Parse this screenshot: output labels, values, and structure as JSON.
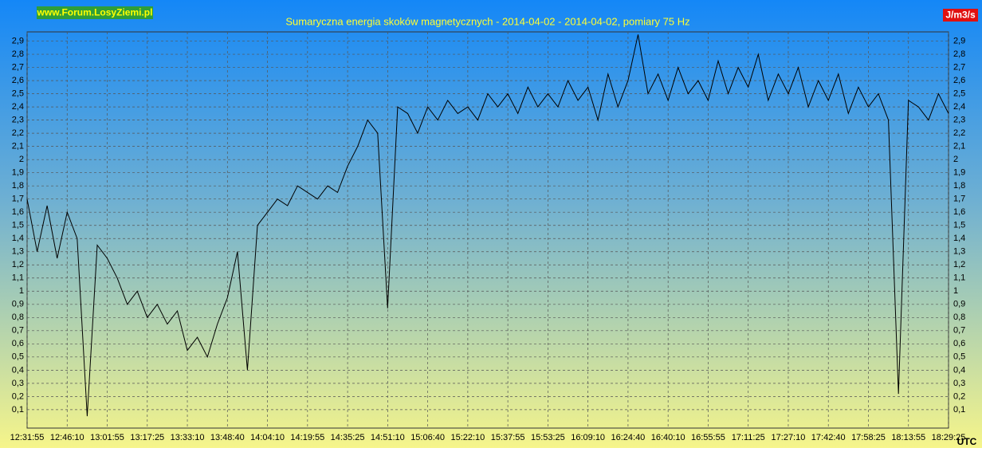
{
  "chart_data": {
    "type": "line",
    "title": "Sumaryczna energia skoków magnetycznych - 2014-04-02 - 2014-04-02, pomiary 75 Hz",
    "watermark": "www.Forum.LosyZiemi.pl",
    "y_unit": "J/m3/s",
    "x_unit": "UTC",
    "grid": true,
    "xlim": [
      0,
      23
    ],
    "xticks": [
      {
        "value": 0,
        "label": "12:31:55"
      },
      {
        "value": 1,
        "label": "12:46:10"
      },
      {
        "value": 2,
        "label": "13:01:55"
      },
      {
        "value": 3,
        "label": "13:17:25"
      },
      {
        "value": 4,
        "label": "13:33:10"
      },
      {
        "value": 5,
        "label": "13:48:40"
      },
      {
        "value": 6,
        "label": "14:04:10"
      },
      {
        "value": 7,
        "label": "14:19:55"
      },
      {
        "value": 8,
        "label": "14:35:25"
      },
      {
        "value": 9,
        "label": "14:51:10"
      },
      {
        "value": 10,
        "label": "15:06:40"
      },
      {
        "value": 11,
        "label": "15:22:10"
      },
      {
        "value": 12,
        "label": "15:37:55"
      },
      {
        "value": 13,
        "label": "15:53:25"
      },
      {
        "value": 14,
        "label": "16:09:10"
      },
      {
        "value": 15,
        "label": "16:24:40"
      },
      {
        "value": 16,
        "label": "16:40:10"
      },
      {
        "value": 17,
        "label": "16:55:55"
      },
      {
        "value": 18,
        "label": "17:11:25"
      },
      {
        "value": 19,
        "label": "17:27:10"
      },
      {
        "value": 20,
        "label": "17:42:40"
      },
      {
        "value": 21,
        "label": "17:58:25"
      },
      {
        "value": 22,
        "label": "18:13:55"
      },
      {
        "value": 23,
        "label": "18:29:25"
      }
    ],
    "ylim": [
      -0.04,
      2.97
    ],
    "yticks": [
      {
        "value": 0.1,
        "label": "0,1"
      },
      {
        "value": 0.2,
        "label": "0,2"
      },
      {
        "value": 0.3,
        "label": "0,3"
      },
      {
        "value": 0.4,
        "label": "0,4"
      },
      {
        "value": 0.5,
        "label": "0,5"
      },
      {
        "value": 0.6,
        "label": "0,6"
      },
      {
        "value": 0.7,
        "label": "0,7"
      },
      {
        "value": 0.8,
        "label": "0,8"
      },
      {
        "value": 0.9,
        "label": "0,9"
      },
      1,
      {
        "value": 1.1,
        "label": "1,1"
      },
      {
        "value": 1.2,
        "label": "1,2"
      },
      {
        "value": 1.3,
        "label": "1,3"
      },
      {
        "value": 1.4,
        "label": "1,4"
      },
      {
        "value": 1.5,
        "label": "1,5"
      },
      {
        "value": 1.6,
        "label": "1,6"
      },
      {
        "value": 1.7,
        "label": "1,7"
      },
      {
        "value": 1.8,
        "label": "1,8"
      },
      {
        "value": 1.9,
        "label": "1,9"
      },
      2,
      {
        "value": 2.1,
        "label": "2,1"
      },
      {
        "value": 2.2,
        "label": "2,2"
      },
      {
        "value": 2.3,
        "label": "2,3"
      },
      {
        "value": 2.4,
        "label": "2,4"
      },
      {
        "value": 2.5,
        "label": "2,5"
      },
      {
        "value": 2.6,
        "label": "2,6"
      },
      {
        "value": 2.7,
        "label": "2,7"
      },
      {
        "value": 2.8,
        "label": "2,8"
      },
      {
        "value": 2.9,
        "label": "2,9"
      }
    ],
    "x": [
      0,
      0.25,
      0.5,
      0.75,
      1,
      1.25,
      1.5,
      1.75,
      2,
      2.25,
      2.5,
      2.75,
      3,
      3.25,
      3.5,
      3.75,
      4,
      4.25,
      4.5,
      4.75,
      5,
      5.25,
      5.5,
      5.75,
      6,
      6.25,
      6.5,
      6.75,
      7,
      7.25,
      7.5,
      7.75,
      8,
      8.25,
      8.5,
      8.75,
      9,
      9.25,
      9.5,
      9.75,
      10,
      10.25,
      10.5,
      10.75,
      11,
      11.25,
      11.5,
      11.75,
      12,
      12.25,
      12.5,
      12.75,
      13,
      13.25,
      13.5,
      13.75,
      14,
      14.25,
      14.5,
      14.75,
      15,
      15.25,
      15.5,
      15.75,
      16,
      16.25,
      16.5,
      16.75,
      17,
      17.25,
      17.5,
      17.75,
      18,
      18.25,
      18.5,
      18.75,
      19,
      19.25,
      19.5,
      19.75,
      20,
      20.25,
      20.5,
      20.75,
      21,
      21.25,
      21.5,
      21.75,
      22,
      22.25,
      22.5,
      22.75,
      23
    ],
    "series": [
      {
        "color": "#000000",
        "values": [
          1.7,
          1.3,
          1.65,
          1.25,
          1.6,
          1.4,
          0.05,
          1.35,
          1.25,
          1.1,
          0.9,
          1.0,
          0.8,
          0.9,
          0.75,
          0.85,
          0.55,
          0.65,
          0.5,
          0.75,
          0.95,
          1.3,
          0.4,
          1.5,
          1.6,
          1.7,
          1.65,
          1.8,
          1.75,
          1.7,
          1.8,
          1.75,
          1.95,
          2.1,
          2.3,
          2.2,
          0.87,
          2.4,
          2.35,
          2.2,
          2.4,
          2.3,
          2.45,
          2.35,
          2.4,
          2.3,
          2.5,
          2.4,
          2.5,
          2.35,
          2.55,
          2.4,
          2.5,
          2.4,
          2.6,
          2.45,
          2.55,
          2.3,
          2.65,
          2.4,
          2.6,
          2.95,
          2.5,
          2.65,
          2.45,
          2.7,
          2.5,
          2.6,
          2.45,
          2.75,
          2.5,
          2.7,
          2.55,
          2.8,
          2.45,
          2.65,
          2.5,
          2.7,
          2.4,
          2.6,
          2.45,
          2.65,
          2.35,
          2.55,
          2.4,
          2.5,
          2.3,
          0.22,
          2.45,
          2.4,
          2.3,
          2.5,
          2.35
        ]
      }
    ]
  }
}
